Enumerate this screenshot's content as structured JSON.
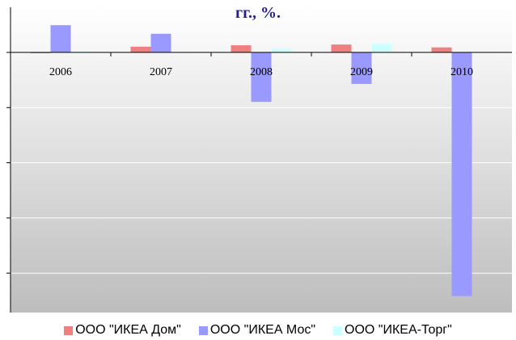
{
  "chart_data": {
    "type": "bar",
    "title": "гг., %.",
    "xlabel": "",
    "ylabel": "",
    "categories": [
      "2006",
      "2007",
      "2008",
      "2009",
      "2010"
    ],
    "series": [
      {
        "name": "ООО \"ИКЕА Дом\"",
        "color": "#f08080",
        "values": [
          -0.1,
          0.8,
          1.0,
          1.1,
          0.7
        ]
      },
      {
        "name": "ООО \"ИКЕА Мос\"",
        "color": "#9999ff",
        "values": [
          3.8,
          2.6,
          -6.9,
          -4.4,
          -34.0
        ]
      },
      {
        "name": "ООО \"ИКЕА-Торг\"",
        "color": "#ccffff",
        "values": [
          0.1,
          -0.1,
          0.5,
          1.2,
          0.0
        ]
      }
    ],
    "ylim": [
      -36.3,
      6.3
    ],
    "grid": true,
    "legend_position": "bottom"
  }
}
